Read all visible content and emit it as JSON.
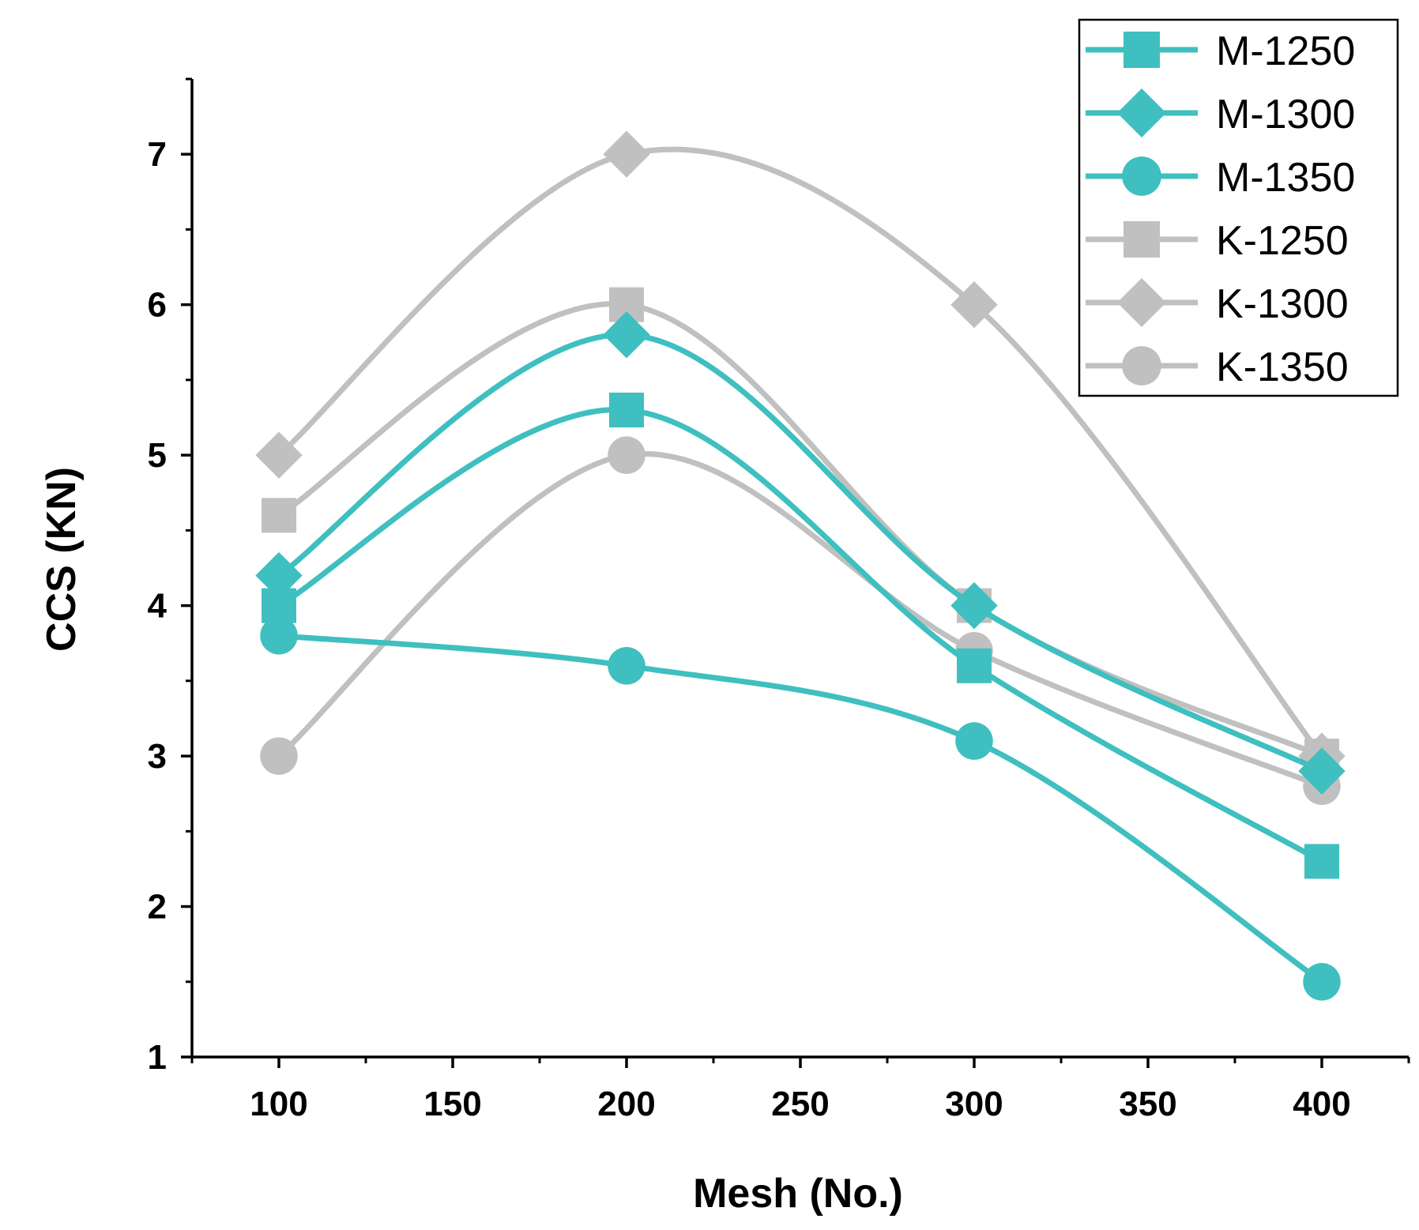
{
  "chart_data": {
    "type": "line",
    "xlabel": "Mesh (No.)",
    "ylabel": "CCS (KN)",
    "xlim": [
      75,
      425
    ],
    "ylim": [
      1,
      7.5
    ],
    "xticks": [
      100,
      150,
      200,
      250,
      300,
      350,
      400
    ],
    "yticks": [
      1,
      2,
      3,
      4,
      5,
      6,
      7
    ],
    "grid": false,
    "legend_position": "top-right",
    "x": [
      100,
      200,
      300,
      400
    ],
    "series": [
      {
        "name": "M-1250",
        "marker": "square",
        "color": "#3fbfbf",
        "values": [
          4.0,
          5.3,
          3.6,
          2.3
        ]
      },
      {
        "name": "M-1300",
        "marker": "diamond",
        "color": "#3fbfbf",
        "values": [
          4.2,
          5.8,
          4.0,
          2.9
        ]
      },
      {
        "name": "M-1350",
        "marker": "circle",
        "color": "#3fbfbf",
        "values": [
          3.8,
          3.6,
          3.1,
          1.5
        ]
      },
      {
        "name": "K-1250",
        "marker": "square",
        "color": "#c0c0c0",
        "values": [
          4.6,
          6.0,
          4.0,
          3.0
        ]
      },
      {
        "name": "K-1300",
        "marker": "diamond",
        "color": "#c0c0c0",
        "values": [
          5.0,
          7.0,
          6.0,
          3.0
        ]
      },
      {
        "name": "K-1350",
        "marker": "circle",
        "color": "#c0c0c0",
        "values": [
          3.0,
          5.0,
          3.7,
          2.8
        ]
      }
    ]
  }
}
